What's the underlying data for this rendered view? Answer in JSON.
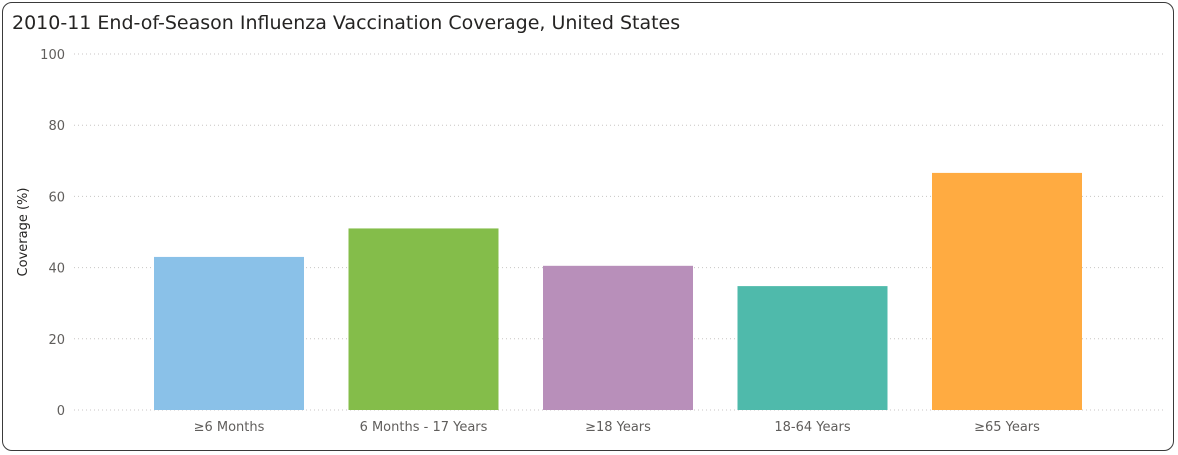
{
  "chart_data": {
    "type": "bar",
    "title": "2010-11 End-of-Season Influenza Vaccination Coverage, United States",
    "xlabel": "",
    "ylabel": "Coverage (%)",
    "ylim": [
      0,
      100
    ],
    "yticks": [
      0,
      20,
      40,
      60,
      80,
      100
    ],
    "grid": true,
    "legend": "none",
    "categories": [
      "≥6 Months",
      "6 Months - 17 Years",
      "≥18 Years",
      "18-64 Years",
      "≥65 Years"
    ],
    "values": [
      43.0,
      51.0,
      40.5,
      34.8,
      66.6
    ],
    "colors": [
      "#8ac1e8",
      "#84bd4a",
      "#b88fba",
      "#4fbaab",
      "#ffab41"
    ]
  }
}
